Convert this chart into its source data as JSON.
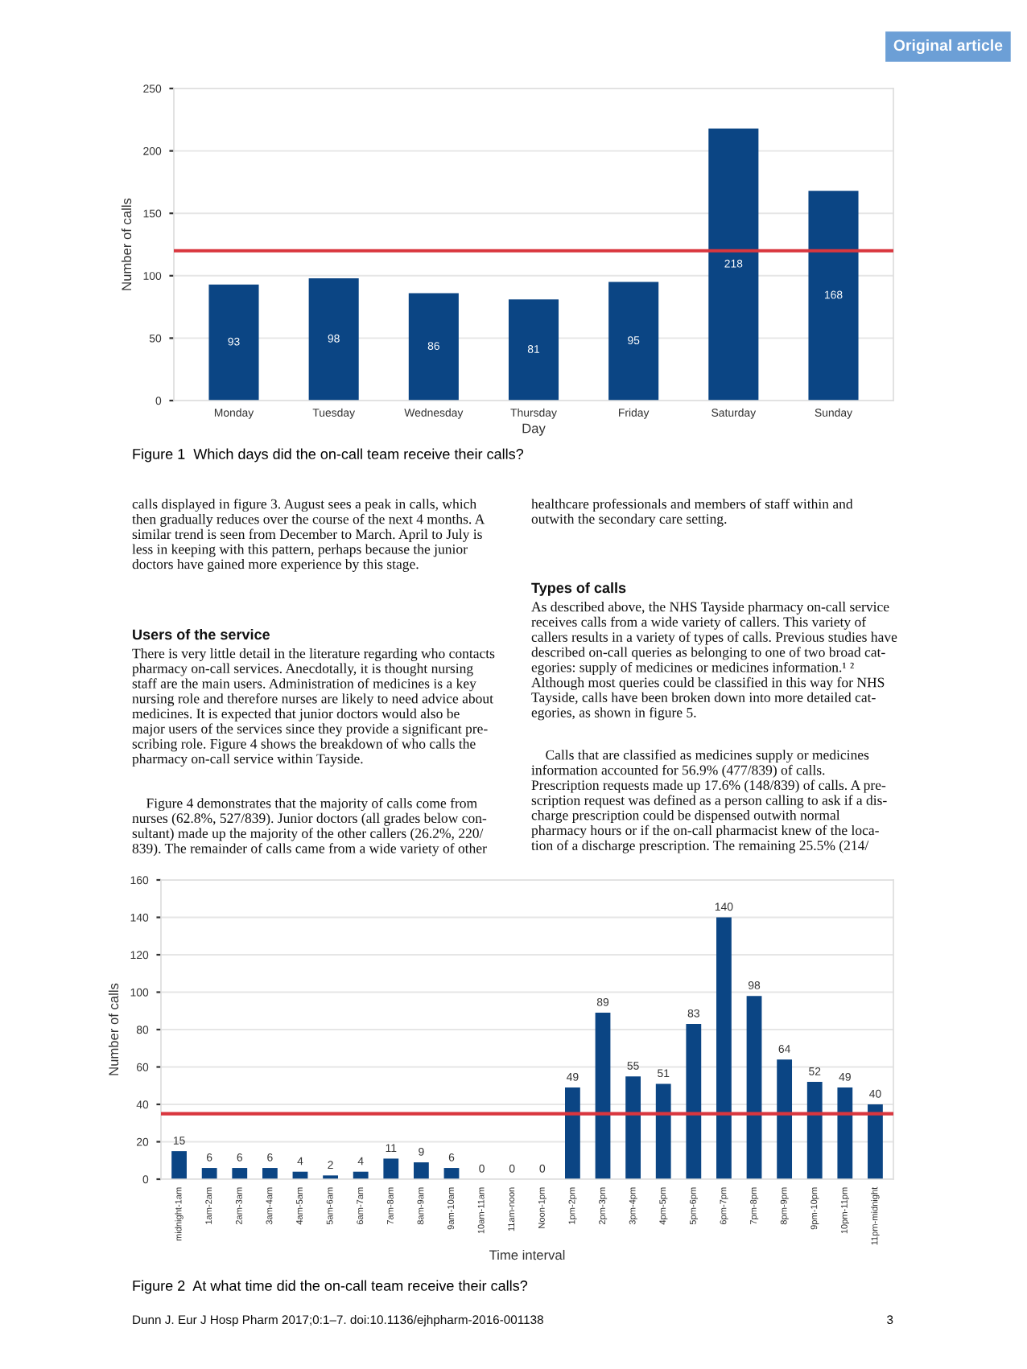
{
  "chart_data": [
    {
      "type": "bar",
      "categories": [
        "Monday",
        "Tuesday",
        "Wednesday",
        "Thursday",
        "Friday",
        "Saturday",
        "Sunday"
      ],
      "values": [
        93,
        98,
        86,
        81,
        95,
        218,
        168
      ],
      "color": "#0b4584",
      "data_labels": true,
      "xlabel": "Day",
      "ylabel": "Number of calls",
      "ylim": [
        0,
        250
      ],
      "yticks": [
        0,
        50,
        100,
        150,
        200,
        250
      ],
      "grid": "y",
      "ref_lines": [
        {
          "axis": "y",
          "value": 120,
          "color": "#d9363e"
        }
      ],
      "annotations": [
        "Figure 1  Which days did the on-call team receive their calls?"
      ]
    },
    {
      "type": "bar",
      "categories": [
        "midnight-1am",
        "1am-2am",
        "2am-3am",
        "3am-4am",
        "4am-5am",
        "5am-6am",
        "6am-7am",
        "7am-8am",
        "8am-9am",
        "9am-10am",
        "10am-11am",
        "11am-noon",
        "Noon-1pm",
        "1pm-2pm",
        "2pm-3pm",
        "3pm-4pm",
        "4pm-5pm",
        "5pm-6pm",
        "6pm-7pm",
        "7pm-8pm",
        "8pm-9pm",
        "9pm-10pm",
        "10pm-11pm",
        "11pm-midnight"
      ],
      "values": [
        15,
        6,
        6,
        6,
        4,
        2,
        4,
        11,
        9,
        6,
        0,
        0,
        0,
        49,
        89,
        55,
        51,
        83,
        140,
        98,
        64,
        52,
        49,
        40
      ],
      "color": "#0b4584",
      "data_labels": true,
      "xlabel": "Time interval",
      "ylabel": "Number of calls",
      "ylim": [
        0,
        160
      ],
      "yticks": [
        0,
        20,
        40,
        60,
        80,
        100,
        120,
        140,
        160
      ],
      "grid": "y",
      "ref_lines": [
        {
          "axis": "y",
          "value": 35,
          "color": "#d9363e"
        }
      ],
      "annotations": [
        "Figure 2  At what time did the on-call team receive their calls?"
      ]
    },
    {
      "type": "other",
      "annotations": [
        "Original article",
        "calls displayed in figure 3. August sees a peak in calls, which\nthen gradually reduces over the course of the next 4 months. A\nsimilar trend is seen from December to March. April to July is\nless in keeping with this pattern, perhaps because the junior\ndoctors have gained more experience by this stage.",
        "Users of the service",
        "There is very little detail in the literature regarding who contacts\npharmacy on-call services. Anecdotally, it is thought nursing\nstaff are the main users. Administration of medicines is a key\nnursing role and therefore nurses are likely to need advice about\nmedicines. It is expected that junior doctors would also be\nmajor users of the services since they provide a significant pre-\nscribing role. Figure 4 shows the breakdown of who calls the\npharmacy on-call service within Tayside.",
        "    Figure 4 demonstrates that the majority of calls come from\nnurses (62.8%, 527/839). Junior doctors (all grades below con-\nsultant) made up the majority of the other callers (26.2%, 220/\n839). The remainder of calls came from a wide variety of other",
        "healthcare professionals and members of staff within and\noutwith the secondary care setting.",
        "Types of calls",
        "As described above, the NHS Tayside pharmacy on-call service\nreceives calls from a wide variety of callers. This variety of\ncallers results in a variety of types of calls. Previous studies have\ndescribed on-call queries as belonging to one of two broad cat-\negories: supply of medicines or medicines information.¹ ²\nAlthough most queries could be classified in this way for NHS\nTayside, calls have been broken down into more detailed cat-\negories, as shown in figure 5.",
        "    Calls that are classified as medicines supply or medicines\ninformation accounted for 56.9% (477/839) of calls.\nPrescription requests made up 17.6% (148/839) of calls. A pre-\nscription request was defined as a person calling to ask if a dis-\ncharge prescription could be dispensed outwith normal\npharmacy hours or if the on-call pharmacist knew of the loca-\ntion of a discharge prescription. The remaining 25.5% (214/",
        "Dunn J. Eur J Hosp Pharm 2017;0:1–7. doi:10.1136/ejhpharm-2016-001138",
        "3"
      ]
    }
  ]
}
